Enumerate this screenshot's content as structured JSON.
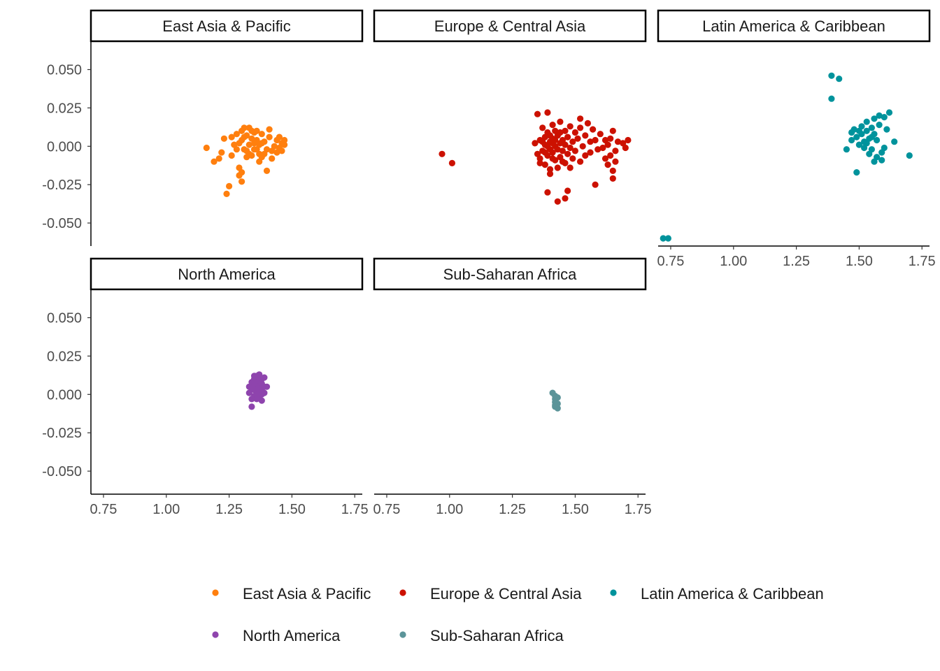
{
  "chart_data": {
    "type": "scatter",
    "layout": "facet grid, 2 rows x 3 columns, free scales per panel",
    "title": "",
    "xlabel": "",
    "ylabel": "",
    "xlim": [
      0.7,
      1.78
    ],
    "ylim": [
      -0.065,
      0.068
    ],
    "x_ticks": [
      0.75,
      1.0,
      1.25,
      1.5,
      1.75
    ],
    "x_tick_labels": [
      "0.75",
      "1.00",
      "1.25",
      "1.50",
      "1.75"
    ],
    "y_ticks": [
      0.05,
      0.025,
      0.0,
      -0.025,
      -0.05
    ],
    "y_tick_labels": [
      "0.050",
      "0.025",
      "0.000",
      "-0.025",
      "-0.050"
    ],
    "grid": false,
    "legend_position": "bottom",
    "series": [
      {
        "name": "East Asia & Pacific",
        "color": "#FF7F0E",
        "points": [
          [
            1.16,
            -0.001
          ],
          [
            1.19,
            -0.01
          ],
          [
            1.21,
            -0.008
          ],
          [
            1.22,
            -0.004
          ],
          [
            1.23,
            0.005
          ],
          [
            1.24,
            -0.031
          ],
          [
            1.25,
            -0.026
          ],
          [
            1.26,
            -0.006
          ],
          [
            1.26,
            0.006
          ],
          [
            1.27,
            0.001
          ],
          [
            1.28,
            -0.002
          ],
          [
            1.28,
            0.008
          ],
          [
            1.29,
            -0.014
          ],
          [
            1.29,
            -0.019
          ],
          [
            1.3,
            -0.023
          ],
          [
            1.3,
            -0.017
          ],
          [
            1.3,
            0.004
          ],
          [
            1.3,
            0.01
          ],
          [
            1.31,
            0.012
          ],
          [
            1.31,
            -0.002
          ],
          [
            1.32,
            0.007
          ],
          [
            1.32,
            -0.003
          ],
          [
            1.33,
            0.012
          ],
          [
            1.33,
            0.001
          ],
          [
            1.34,
            -0.006
          ],
          [
            1.34,
            0.005
          ],
          [
            1.35,
            0.009
          ],
          [
            1.35,
            -0.002
          ],
          [
            1.36,
            0.004
          ],
          [
            1.36,
            0.01
          ],
          [
            1.37,
            -0.005
          ],
          [
            1.37,
            0.001
          ],
          [
            1.38,
            0.008
          ],
          [
            1.38,
            -0.007
          ],
          [
            1.39,
            0.003
          ],
          [
            1.4,
            -0.002
          ],
          [
            1.4,
            -0.016
          ],
          [
            1.41,
            0.011
          ],
          [
            1.41,
            0.006
          ],
          [
            1.42,
            -0.008
          ],
          [
            1.43,
            0.0
          ],
          [
            1.44,
            -0.004
          ],
          [
            1.44,
            0.004
          ],
          [
            1.45,
            0.006
          ],
          [
            1.46,
            -0.003
          ],
          [
            1.46,
            0.002
          ],
          [
            1.47,
            0.001
          ],
          [
            1.47,
            0.004
          ],
          [
            1.33,
            -0.005
          ],
          [
            1.35,
            0.002
          ],
          [
            1.37,
            -0.01
          ],
          [
            1.36,
            -0.002
          ],
          [
            1.34,
            0.01
          ],
          [
            1.29,
            0.002
          ],
          [
            1.31,
            0.006
          ],
          [
            1.42,
            -0.003
          ],
          [
            1.39,
            -0.005
          ],
          [
            1.45,
            -0.001
          ],
          [
            1.32,
            -0.007
          ],
          [
            1.38,
            0.002
          ]
        ]
      },
      {
        "name": "Europe & Central Asia",
        "color": "#CC1100",
        "points": [
          [
            0.97,
            -0.005
          ],
          [
            1.01,
            -0.011
          ],
          [
            1.34,
            0.002
          ],
          [
            1.35,
            -0.005
          ],
          [
            1.35,
            0.021
          ],
          [
            1.36,
            -0.008
          ],
          [
            1.36,
            0.004
          ],
          [
            1.37,
            0.012
          ],
          [
            1.37,
            -0.003
          ],
          [
            1.38,
            0.006
          ],
          [
            1.38,
            -0.012
          ],
          [
            1.38,
            0.001
          ],
          [
            1.39,
            0.022
          ],
          [
            1.39,
            -0.006
          ],
          [
            1.39,
            0.009
          ],
          [
            1.4,
            0.003
          ],
          [
            1.4,
            -0.002
          ],
          [
            1.4,
            -0.018
          ],
          [
            1.41,
            0.014
          ],
          [
            1.41,
            -0.004
          ],
          [
            1.41,
            0.005
          ],
          [
            1.42,
            -0.009
          ],
          [
            1.42,
            0.01
          ],
          [
            1.42,
            0.0
          ],
          [
            1.43,
            -0.014
          ],
          [
            1.43,
            0.007
          ],
          [
            1.43,
            -0.036
          ],
          [
            1.44,
            0.002
          ],
          [
            1.44,
            -0.007
          ],
          [
            1.44,
            0.016
          ],
          [
            1.45,
            -0.003
          ],
          [
            1.45,
            0.004
          ],
          [
            1.46,
            0.01
          ],
          [
            1.46,
            -0.011
          ],
          [
            1.46,
            0.001
          ],
          [
            1.47,
            0.006
          ],
          [
            1.47,
            -0.005
          ],
          [
            1.48,
            0.013
          ],
          [
            1.48,
            -0.001
          ],
          [
            1.49,
            0.003
          ],
          [
            1.49,
            -0.008
          ],
          [
            1.5,
            0.009
          ],
          [
            1.5,
            -0.003
          ],
          [
            1.51,
            0.005
          ],
          [
            1.52,
            -0.01
          ],
          [
            1.52,
            0.012
          ],
          [
            1.53,
            0.0
          ],
          [
            1.54,
            0.007
          ],
          [
            1.54,
            -0.006
          ],
          [
            1.55,
            0.015
          ],
          [
            1.56,
            -0.004
          ],
          [
            1.56,
            0.003
          ],
          [
            1.57,
            0.011
          ],
          [
            1.58,
            -0.025
          ],
          [
            1.58,
            0.004
          ],
          [
            1.59,
            -0.002
          ],
          [
            1.6,
            0.008
          ],
          [
            1.61,
            -0.001
          ],
          [
            1.62,
            0.004
          ],
          [
            1.62,
            -0.008
          ],
          [
            1.63,
            -0.012
          ],
          [
            1.63,
            0.001
          ],
          [
            1.64,
            -0.006
          ],
          [
            1.64,
            0.005
          ],
          [
            1.65,
            -0.016
          ],
          [
            1.65,
            0.01
          ],
          [
            1.65,
            -0.021
          ],
          [
            1.66,
            -0.003
          ],
          [
            1.66,
            -0.01
          ],
          [
            1.67,
            0.003
          ],
          [
            1.69,
            0.002
          ],
          [
            1.7,
            -0.001
          ],
          [
            1.71,
            0.004
          ],
          [
            1.39,
            -0.03
          ],
          [
            1.46,
            -0.034
          ],
          [
            1.47,
            -0.029
          ],
          [
            1.4,
            -0.015
          ],
          [
            1.36,
            -0.011
          ],
          [
            1.52,
            0.018
          ],
          [
            1.48,
            -0.014
          ],
          [
            1.37,
            0.003
          ],
          [
            1.38,
            -0.004
          ],
          [
            1.39,
            0.0
          ],
          [
            1.4,
            0.007
          ],
          [
            1.41,
            -0.008
          ],
          [
            1.42,
            0.004
          ],
          [
            1.43,
            -0.002
          ],
          [
            1.44,
            0.009
          ],
          [
            1.45,
            -0.01
          ],
          [
            1.41,
            0.002
          ]
        ]
      },
      {
        "name": "Latin America & Caribbean",
        "color": "#00939C",
        "points": [
          [
            0.72,
            -0.06
          ],
          [
            0.74,
            -0.06
          ],
          [
            1.39,
            0.046
          ],
          [
            1.42,
            0.044
          ],
          [
            1.39,
            0.031
          ],
          [
            1.45,
            -0.002
          ],
          [
            1.47,
            0.009
          ],
          [
            1.47,
            0.004
          ],
          [
            1.48,
            0.011
          ],
          [
            1.49,
            -0.017
          ],
          [
            1.49,
            0.006
          ],
          [
            1.5,
            0.001
          ],
          [
            1.51,
            0.013
          ],
          [
            1.51,
            0.008
          ],
          [
            1.52,
            0.003
          ],
          [
            1.52,
            -0.001
          ],
          [
            1.53,
            0.016
          ],
          [
            1.53,
            0.01
          ],
          [
            1.54,
            0.005
          ],
          [
            1.54,
            -0.005
          ],
          [
            1.55,
            0.012
          ],
          [
            1.55,
            -0.002
          ],
          [
            1.56,
            0.018
          ],
          [
            1.56,
            0.008
          ],
          [
            1.57,
            -0.007
          ],
          [
            1.57,
            0.004
          ],
          [
            1.58,
            0.02
          ],
          [
            1.58,
            0.014
          ],
          [
            1.59,
            -0.004
          ],
          [
            1.59,
            -0.009
          ],
          [
            1.6,
            0.019
          ],
          [
            1.6,
            -0.001
          ],
          [
            1.61,
            0.011
          ],
          [
            1.62,
            0.022
          ],
          [
            1.64,
            0.003
          ],
          [
            1.7,
            -0.006
          ],
          [
            1.56,
            -0.01
          ],
          [
            1.53,
            0.002
          ],
          [
            1.5,
            0.01
          ],
          [
            1.55,
            0.006
          ]
        ]
      },
      {
        "name": "North America",
        "color": "#8E44AD",
        "points": [
          [
            1.33,
            0.001
          ],
          [
            1.33,
            0.005
          ],
          [
            1.34,
            -0.003
          ],
          [
            1.34,
            0.008
          ],
          [
            1.34,
            -0.008
          ],
          [
            1.35,
            0.003
          ],
          [
            1.35,
            0.01
          ],
          [
            1.35,
            -0.001
          ],
          [
            1.36,
            0.006
          ],
          [
            1.36,
            0.0
          ],
          [
            1.36,
            0.012
          ],
          [
            1.37,
            0.004
          ],
          [
            1.37,
            -0.002
          ],
          [
            1.37,
            0.009
          ],
          [
            1.38,
            0.002
          ],
          [
            1.38,
            0.007
          ],
          [
            1.38,
            -0.004
          ],
          [
            1.39,
            0.005
          ],
          [
            1.39,
            0.011
          ],
          [
            1.39,
            0.001
          ],
          [
            1.4,
            0.005
          ],
          [
            1.36,
            0.003
          ],
          [
            1.35,
            0.007
          ],
          [
            1.37,
            0.013
          ],
          [
            1.38,
            0.01
          ],
          [
            1.34,
            0.004
          ],
          [
            1.36,
            -0.003
          ],
          [
            1.37,
            0.001
          ],
          [
            1.35,
            0.012
          ],
          [
            1.38,
            0.0
          ]
        ]
      },
      {
        "name": "Sub-Saharan Africa",
        "color": "#5B9499",
        "points": [
          [
            1.41,
            0.001
          ],
          [
            1.42,
            -0.001
          ],
          [
            1.42,
            -0.003
          ],
          [
            1.43,
            -0.002
          ],
          [
            1.42,
            -0.005
          ],
          [
            1.43,
            -0.006
          ],
          [
            1.42,
            -0.008
          ],
          [
            1.43,
            -0.009
          ],
          [
            1.42,
            -0.007
          ]
        ]
      }
    ],
    "panels": [
      {
        "label": "East Asia & Pacific",
        "series": 0,
        "show_x_axis": false
      },
      {
        "label": "Europe & Central Asia",
        "series": 1,
        "show_x_axis": false
      },
      {
        "label": "Latin America & Caribbean",
        "series": 2,
        "show_x_axis": true
      },
      {
        "label": "North America",
        "series": 3,
        "show_x_axis": true
      },
      {
        "label": "Sub-Saharan Africa",
        "series": 4,
        "show_x_axis": true
      }
    ]
  }
}
